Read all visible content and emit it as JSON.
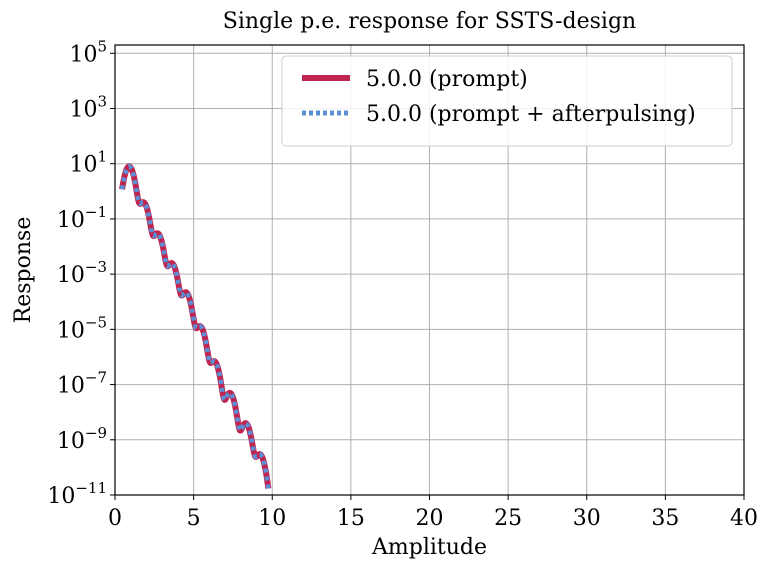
{
  "chart_data": {
    "type": "line",
    "title": "Single p.e. response for SSTS-design",
    "xlabel": "Amplitude",
    "ylabel": "Response",
    "xlim": [
      0,
      40
    ],
    "ylim_log10": [
      -11,
      5.3
    ],
    "y_scale": "log",
    "grid": true,
    "legend_position": "upper right",
    "x_ticks": [
      "0",
      "5",
      "10",
      "15",
      "20",
      "25",
      "30",
      "35",
      "40"
    ],
    "y_ticks": [
      {
        "base": "10",
        "exp": "5"
      },
      {
        "base": "10",
        "exp": "3"
      },
      {
        "base": "10",
        "exp": "1"
      },
      {
        "base": "10",
        "exp": "−1"
      },
      {
        "base": "10",
        "exp": "−3"
      },
      {
        "base": "10",
        "exp": "−5"
      },
      {
        "base": "10",
        "exp": "−7"
      },
      {
        "base": "10",
        "exp": "−9"
      },
      {
        "base": "10",
        "exp": "−11"
      }
    ],
    "peaks": [
      {
        "amplitude": 0.9,
        "response": 8.0
      },
      {
        "amplitude": 1.8,
        "response": 0.4
      },
      {
        "amplitude": 2.7,
        "response": 0.03
      },
      {
        "amplitude": 3.6,
        "response": 0.0025
      },
      {
        "amplitude": 4.5,
        "response": 0.00022
      },
      {
        "amplitude": 5.4,
        "response": 1.3e-05
      },
      {
        "amplitude": 6.3,
        "response": 7e-07
      },
      {
        "amplitude": 7.3,
        "response": 5e-08
      },
      {
        "amplitude": 8.3,
        "response": 4e-09
      },
      {
        "amplitude": 9.2,
        "response": 3e-10
      }
    ],
    "series": [
      {
        "name": "5.0.0 (prompt)",
        "color": "#c0254f",
        "style": "solid"
      },
      {
        "name": "5.0.0 (prompt + afterpulsing)",
        "color": "#5b8fd6",
        "style": "dotted"
      }
    ]
  }
}
